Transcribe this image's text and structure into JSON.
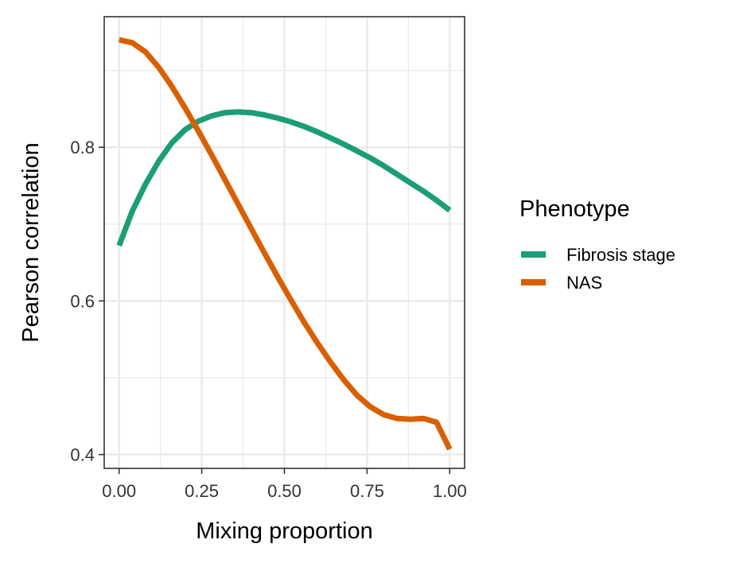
{
  "chart_data": {
    "type": "line",
    "xlabel": "Mixing proportion",
    "ylabel": "Pearson correlation",
    "xlim": [
      -0.045,
      1.045
    ],
    "ylim": [
      0.382,
      0.97
    ],
    "x_ticks": [
      0.0,
      0.25,
      0.5,
      0.75,
      1.0
    ],
    "x_tick_labels": [
      "0.00",
      "0.25",
      "0.50",
      "0.75",
      "1.00"
    ],
    "y_ticks": [
      0.4,
      0.6,
      0.8
    ],
    "y_tick_labels": [
      "0.4",
      "0.6",
      "0.8"
    ],
    "grid": true,
    "legend": {
      "title": "Phenotype",
      "position": "right"
    },
    "series": [
      {
        "name": "Fibrosis stage",
        "color": "#1b9e77",
        "x": [
          0.0,
          0.04,
          0.08,
          0.12,
          0.16,
          0.2,
          0.24,
          0.28,
          0.32,
          0.36,
          0.4,
          0.44,
          0.48,
          0.52,
          0.56,
          0.6,
          0.64,
          0.68,
          0.72,
          0.76,
          0.8,
          0.84,
          0.88,
          0.92,
          0.96,
          1.0
        ],
        "values": [
          0.672,
          0.717,
          0.752,
          0.782,
          0.806,
          0.823,
          0.834,
          0.841,
          0.845,
          0.846,
          0.845,
          0.842,
          0.838,
          0.833,
          0.827,
          0.82,
          0.812,
          0.804,
          0.795,
          0.786,
          0.776,
          0.765,
          0.754,
          0.743,
          0.731,
          0.718
        ]
      },
      {
        "name": "NAS",
        "color": "#d95f02",
        "x": [
          0.0,
          0.04,
          0.08,
          0.12,
          0.16,
          0.2,
          0.24,
          0.28,
          0.32,
          0.36,
          0.4,
          0.44,
          0.48,
          0.52,
          0.56,
          0.6,
          0.64,
          0.68,
          0.72,
          0.76,
          0.8,
          0.84,
          0.88,
          0.92,
          0.96,
          1.0
        ],
        "values": [
          0.94,
          0.936,
          0.924,
          0.904,
          0.879,
          0.851,
          0.821,
          0.79,
          0.758,
          0.726,
          0.694,
          0.662,
          0.631,
          0.601,
          0.572,
          0.545,
          0.52,
          0.497,
          0.477,
          0.462,
          0.452,
          0.447,
          0.446,
          0.447,
          0.442,
          0.407
        ]
      }
    ]
  }
}
